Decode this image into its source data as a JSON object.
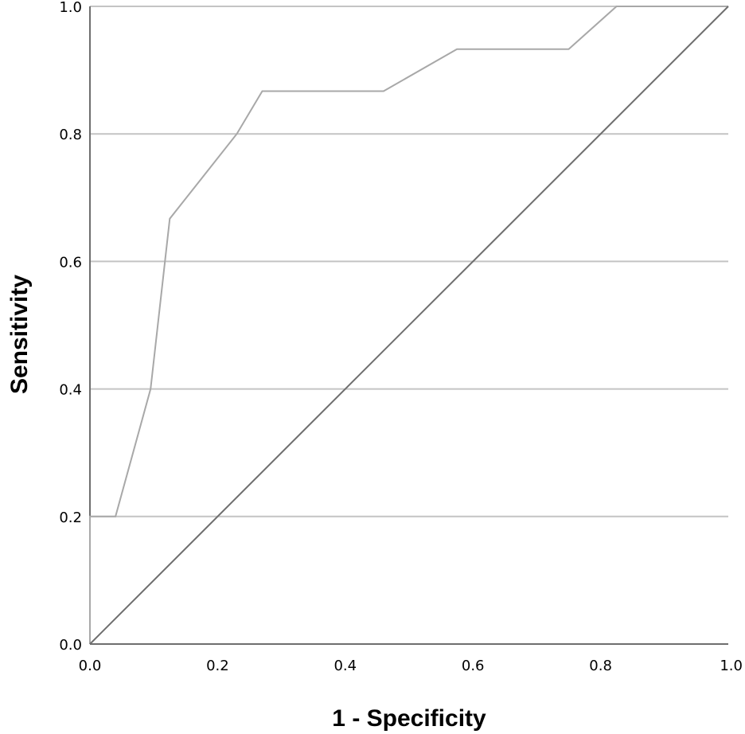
{
  "chart_data": {
    "type": "line",
    "title": "",
    "xlabel": "1 - Specificity",
    "ylabel": "Sensitivity",
    "xlim": [
      0.0,
      1.0
    ],
    "ylim": [
      0.0,
      1.0
    ],
    "x_ticks": [
      "0.0",
      "0.2",
      "0.4",
      "0.6",
      "0.8",
      "1.0"
    ],
    "y_ticks": [
      "0.0",
      "0.2",
      "0.4",
      "0.6",
      "0.8",
      "1.0"
    ],
    "grid": "horizontal",
    "series": [
      {
        "color": "#a8a8a8",
        "points": [
          [
            0.0,
            0.0
          ],
          [
            0.0,
            0.2
          ],
          [
            0.04,
            0.2
          ],
          [
            0.095,
            0.4
          ],
          [
            0.125,
            0.667
          ],
          [
            0.23,
            0.8
          ],
          [
            0.27,
            0.867
          ],
          [
            0.46,
            0.867
          ],
          [
            0.575,
            0.933
          ],
          [
            0.75,
            0.933
          ],
          [
            0.825,
            1.0
          ],
          [
            1.0,
            1.0
          ]
        ]
      },
      {
        "color": "#6e6e6e",
        "points": [
          [
            0.0,
            0.0
          ],
          [
            1.0,
            1.0
          ]
        ]
      }
    ]
  }
}
